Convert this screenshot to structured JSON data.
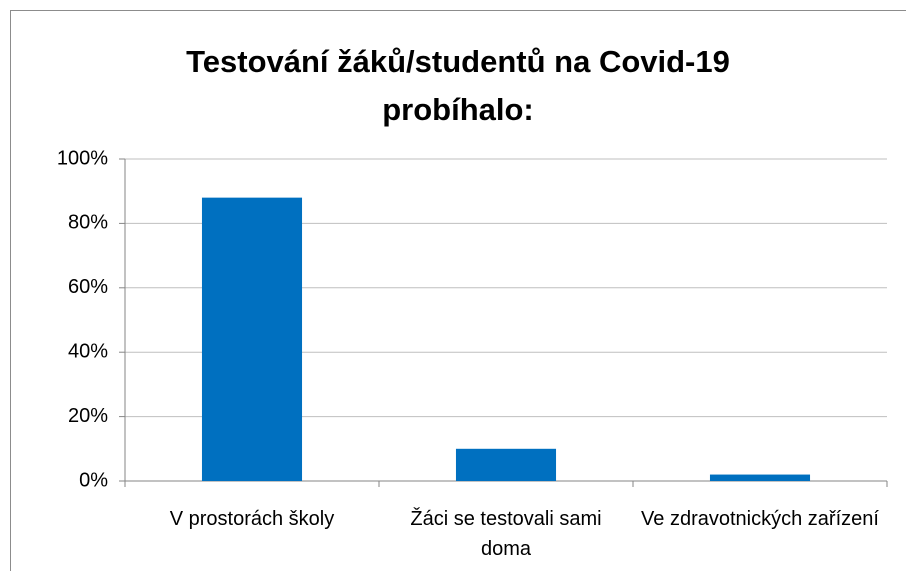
{
  "chart_data": {
    "type": "bar",
    "title": "Testování žáků/studentů na Covid-19 probíhalo:",
    "categories": [
      "V prostorách školy",
      "Žáci se testovali sami doma",
      "Ve zdravotnických zařízení"
    ],
    "values": [
      88,
      10,
      2
    ],
    "color": "#0070c0",
    "ylim": [
      0,
      100
    ],
    "yticks": [
      {
        "value": 0,
        "label": "0%"
      },
      {
        "value": 20,
        "label": "20%"
      },
      {
        "value": 40,
        "label": "40%"
      },
      {
        "value": 60,
        "label": "60%"
      },
      {
        "value": 80,
        "label": "80%"
      },
      {
        "value": 100,
        "label": "100%"
      }
    ],
    "grid": true
  }
}
